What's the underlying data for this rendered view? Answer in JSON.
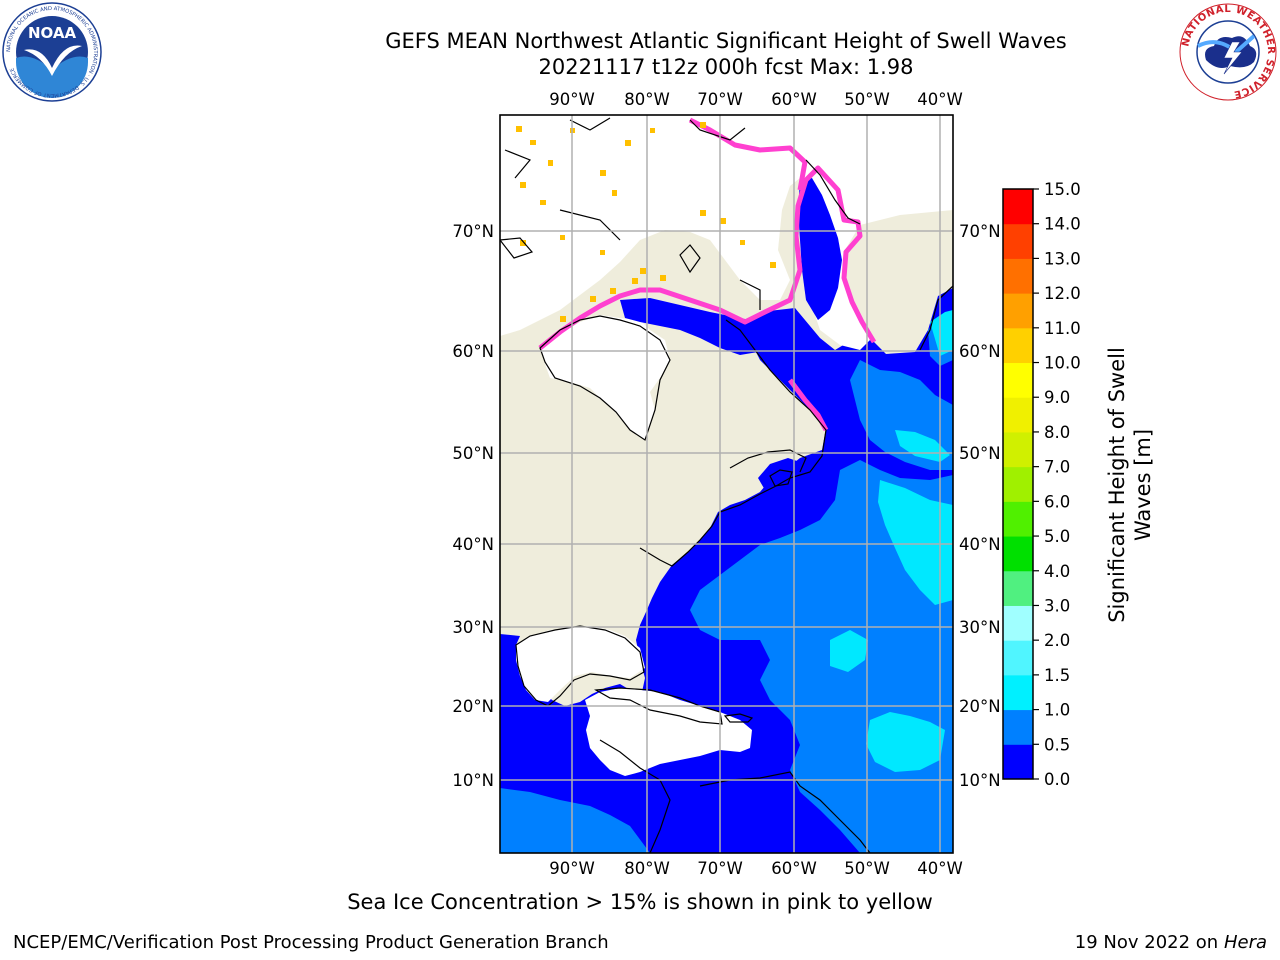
{
  "title_line1": "GEFS MEAN Northwest Atlantic Significant Height of Swell Waves",
  "title_line2": "20221117 t12z 000h fcst   Max: 1.98",
  "map": {
    "lon_labels": [
      "90°W",
      "80°W",
      "70°W",
      "60°W",
      "50°W",
      "40°W"
    ],
    "lat_labels": [
      "70°N",
      "60°N",
      "50°N",
      "40°N",
      "30°N",
      "20°N",
      "10°N"
    ],
    "colors": {
      "land": "#efeddc",
      "ocean_0_05": "#0000ff",
      "ocean_05_1": "#0080ff",
      "ocean_1_15": "#00e8ff",
      "ocean_15_2": "#50f5ff",
      "ice": "#ffffff",
      "ice_edge": "#ff40d0",
      "ice_yellow": "#ffc000",
      "grid": "#b0b0b0"
    }
  },
  "colorbar": {
    "label": "Significant Height of Swell Waves [m]",
    "ticks": [
      "0.0",
      "0.5",
      "1.0",
      "1.5",
      "2.0",
      "3.0",
      "4.0",
      "5.0",
      "6.0",
      "7.0",
      "8.0",
      "9.0",
      "10.0",
      "11.0",
      "12.0",
      "13.0",
      "14.0",
      "15.0"
    ],
    "colors": [
      "#0000ff",
      "#0080ff",
      "#00f0ff",
      "#50f5ff",
      "#a0ffff",
      "#50f080",
      "#00e000",
      "#50f000",
      "#a0f000",
      "#d0f000",
      "#f0f000",
      "#ffff00",
      "#ffd000",
      "#ffa000",
      "#ff7000",
      "#ff4000",
      "#ff0000"
    ]
  },
  "caption": "Sea Ice Concentration > 15% is shown in pink to yellow",
  "footer_left": "NCEP/EMC/Verification Post Processing Product Generation Branch",
  "footer_date": "19 Nov 2022 on",
  "footer_host": "Hera",
  "logos": {
    "noaa_text": "NOAA",
    "nws_text": "NATIONAL WEATHER SERVICE",
    "noaa_ring_text": "NATIONAL OCEANIC AND ATMOSPHERIC ADMINISTRATION · U.S. DEPARTMENT OF COMMERCE"
  }
}
